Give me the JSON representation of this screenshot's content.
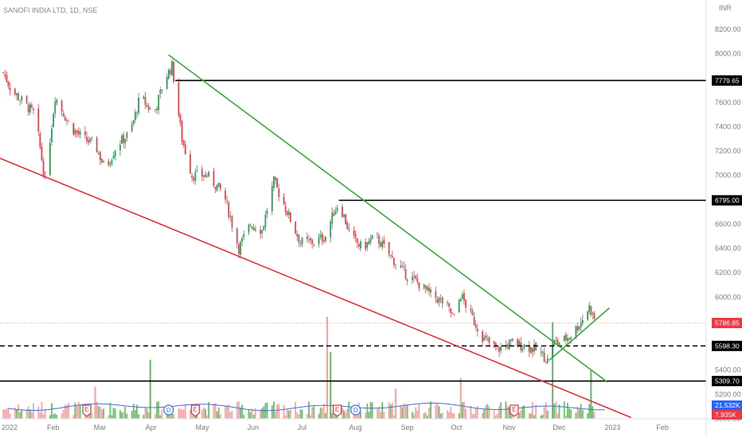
{
  "header": {
    "symbol": "SANOFI INDIA LTD",
    "timeframe": "1D",
    "exchange": "NSE",
    "title": "SANOFI INDIA LTD, 1D, NSE",
    "currency": "INR"
  },
  "colors": {
    "up": "#26a69a",
    "up_candle": "#2f9c5a",
    "down": "#ef5350",
    "down_candle": "#e2474f",
    "vol_up": "#6cbf6c",
    "vol_down": "#f4a6a6",
    "volume_ma": "#4a6fd1",
    "trend_green": "#3aa83a",
    "trend_red": "#e0323d",
    "level_line": "#000000",
    "last_price_line": "#f28b82"
  },
  "chart_data": {
    "type": "candlestick",
    "y_axis": {
      "label": "INR",
      "ylim": [
        5000,
        8350
      ],
      "ticks": [
        "8200.00",
        "8000.00",
        "7800.00",
        "7600.00",
        "7400.00",
        "7200.00",
        "7000.00",
        "6800.00",
        "6600.00",
        "6400.00",
        "6200.00",
        "6000.00",
        "5800.00",
        "5600.00",
        "5400.00",
        "5200.00",
        "5000.00"
      ]
    },
    "x_axis": {
      "start": "2022-01-01",
      "end": "2023-02-28",
      "ticks": [
        {
          "label": "2022",
          "date": "2022-01-01"
        },
        {
          "label": "Feb",
          "date": "2022-02-01"
        },
        {
          "label": "Mar",
          "date": "2022-03-01"
        },
        {
          "label": "Apr",
          "date": "2022-04-01"
        },
        {
          "label": "May",
          "date": "2022-05-01"
        },
        {
          "label": "Jun",
          "date": "2022-06-01"
        },
        {
          "label": "Jul",
          "date": "2022-07-01"
        },
        {
          "label": "Aug",
          "date": "2022-08-01"
        },
        {
          "label": "Sep",
          "date": "2022-09-01"
        },
        {
          "label": "Oct",
          "date": "2022-10-01"
        },
        {
          "label": "Nov",
          "date": "2022-11-01"
        },
        {
          "label": "Dec",
          "date": "2022-12-01"
        },
        {
          "label": "2023",
          "date": "2023-01-01"
        },
        {
          "label": "Feb",
          "date": "2023-02-01"
        }
      ]
    },
    "price_path": [
      [
        "2022-01-01",
        7900
      ],
      [
        "2022-01-08",
        7700
      ],
      [
        "2022-01-15",
        7600
      ],
      [
        "2022-01-22",
        7500
      ],
      [
        "2022-01-28",
        6950
      ],
      [
        "2022-02-03",
        7650
      ],
      [
        "2022-02-12",
        7400
      ],
      [
        "2022-02-20",
        7300
      ],
      [
        "2022-02-27",
        7250
      ],
      [
        "2022-03-05",
        7050
      ],
      [
        "2022-03-12",
        7250
      ],
      [
        "2022-03-20",
        7350
      ],
      [
        "2022-03-26",
        7650
      ],
      [
        "2022-04-03",
        7500
      ],
      [
        "2022-04-10",
        7800
      ],
      [
        "2022-04-14",
        7900
      ],
      [
        "2022-04-20",
        7300
      ],
      [
        "2022-04-26",
        7000
      ],
      [
        "2022-05-05",
        7000
      ],
      [
        "2022-05-15",
        6850
      ],
      [
        "2022-05-24",
        6400
      ],
      [
        "2022-05-31",
        6600
      ],
      [
        "2022-06-07",
        6550
      ],
      [
        "2022-06-14",
        6950
      ],
      [
        "2022-06-22",
        6700
      ],
      [
        "2022-06-30",
        6450
      ],
      [
        "2022-07-08",
        6450
      ],
      [
        "2022-07-15",
        6500
      ],
      [
        "2022-07-20",
        6700
      ],
      [
        "2022-07-23",
        6780
      ],
      [
        "2022-07-30",
        6500
      ],
      [
        "2022-08-06",
        6400
      ],
      [
        "2022-08-14",
        6500
      ],
      [
        "2022-08-22",
        6350
      ],
      [
        "2022-08-31",
        6200
      ],
      [
        "2022-09-08",
        6120
      ],
      [
        "2022-09-16",
        6020
      ],
      [
        "2022-09-24",
        5950
      ],
      [
        "2022-09-30",
        5830
      ],
      [
        "2022-10-04",
        6020
      ],
      [
        "2022-10-10",
        5850
      ],
      [
        "2022-10-18",
        5650
      ],
      [
        "2022-10-26",
        5570
      ],
      [
        "2022-11-03",
        5620
      ],
      [
        "2022-11-12",
        5600
      ],
      [
        "2022-11-20",
        5550
      ],
      [
        "2022-11-25",
        5480
      ],
      [
        "2022-11-28",
        5620
      ],
      [
        "2022-12-04",
        5640
      ],
      [
        "2022-12-10",
        5700
      ],
      [
        "2022-12-15",
        5800
      ],
      [
        "2022-12-20",
        5920
      ],
      [
        "2022-12-24",
        5787
      ]
    ],
    "horizontal_levels": [
      {
        "value": 7779.65,
        "label": "7779.65",
        "from": "2022-04-16",
        "style": "solid"
      },
      {
        "value": 6795.0,
        "label": "6795.00",
        "from": "2022-07-23",
        "style": "solid"
      },
      {
        "value": 5598.3,
        "label": "5598.30",
        "from": "2022-01-01",
        "style": "dashed"
      },
      {
        "value": 5309.7,
        "label": "5309.70",
        "from": "2022-01-01",
        "style": "solid"
      }
    ],
    "trendlines": [
      {
        "name": "descending-resistance",
        "color": "green",
        "from": [
          "2022-04-12",
          7990
        ],
        "to": [
          "2022-12-31",
          5300
        ]
      },
      {
        "name": "breakout-support",
        "color": "green",
        "from": [
          "2022-11-26",
          5480
        ],
        "to": [
          "2023-01-01",
          5910
        ]
      },
      {
        "name": "descending-support",
        "color": "red",
        "from": [
          "2021-12-25",
          7180
        ],
        "to": [
          "2023-01-14",
          5010
        ]
      }
    ],
    "last_price": {
      "value": 5786.85,
      "label": "5786.85"
    },
    "volume": {
      "ma_label": "21.532K",
      "last_label": "7.935K",
      "spikes": [
        {
          "date": "2022-07-16",
          "relative": 0.95,
          "dir": "down"
        },
        {
          "date": "2022-07-18",
          "relative": 0.62,
          "dir": "up"
        },
        {
          "date": "2022-04-01",
          "relative": 0.55,
          "dir": "up"
        },
        {
          "date": "2022-11-28",
          "relative": 0.9,
          "dir": "up"
        },
        {
          "date": "2022-12-21",
          "relative": 0.45,
          "dir": "up"
        },
        {
          "date": "2022-10-04",
          "relative": 0.38,
          "dir": "down"
        },
        {
          "date": "2022-08-26",
          "relative": 0.28,
          "dir": "down"
        },
        {
          "date": "2022-02-27",
          "relative": 0.3,
          "dir": "down"
        }
      ]
    },
    "event_markers": [
      {
        "date": "2022-02-22",
        "label": "E",
        "kind": "earnings"
      },
      {
        "date": "2022-04-12",
        "label": "D",
        "kind": "dividend"
      },
      {
        "date": "2022-04-28",
        "label": "E",
        "kind": "earnings"
      },
      {
        "date": "2022-07-22",
        "label": "E",
        "kind": "earnings"
      },
      {
        "date": "2022-08-02",
        "label": "D",
        "kind": "dividend"
      },
      {
        "date": "2022-11-05",
        "label": "E",
        "kind": "earnings"
      }
    ]
  }
}
